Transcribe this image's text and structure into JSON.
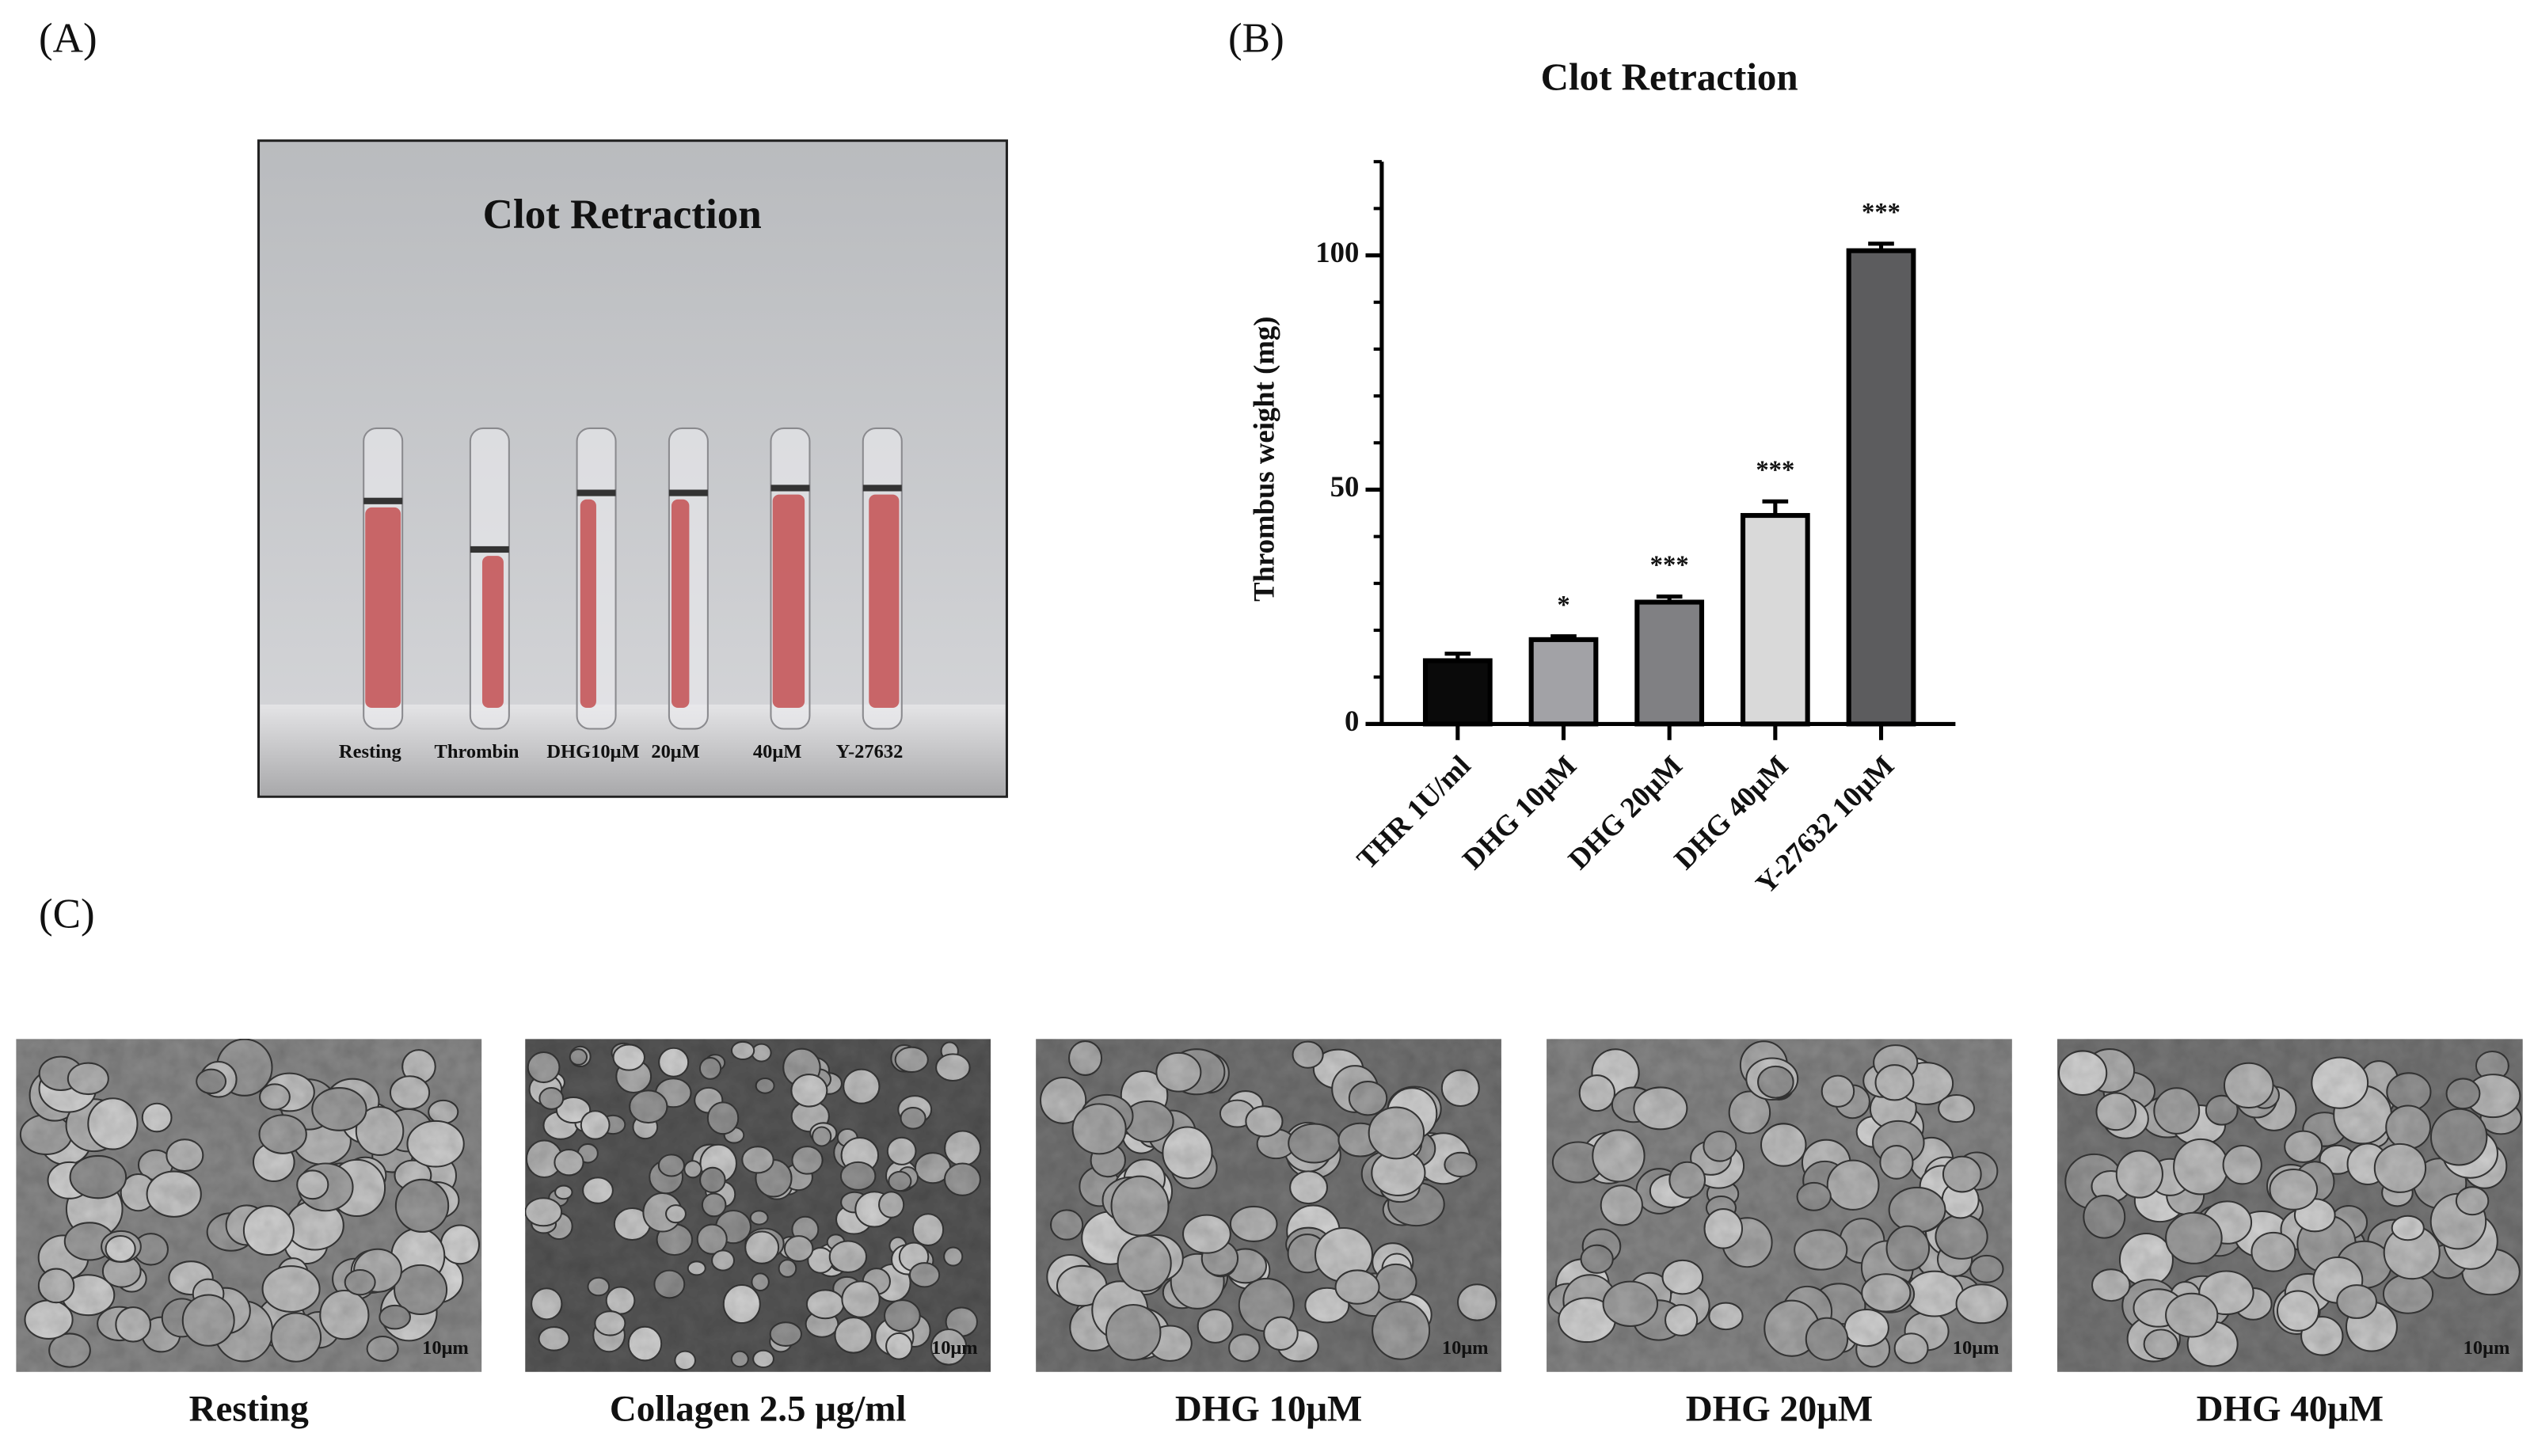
{
  "panels": {
    "a": "(A)",
    "b": "(B)",
    "c": "(C)"
  },
  "photo": {
    "title": "Clot Retraction",
    "labels": [
      "Resting",
      "Thrombin",
      "DHG10μM",
      "20μM",
      "40μM",
      "Y-27632"
    ]
  },
  "chart_data": {
    "type": "bar",
    "title": "Clot Retraction",
    "y_label": "Thrombus weight (mg)",
    "categories": [
      "THR 1U/ml",
      "DHG 10μM",
      "DHG 20μM",
      "DHG 40μM",
      "Y-27632 10μM"
    ],
    "values": [
      13.5,
      18,
      26,
      44.5,
      101
    ],
    "errors": [
      1.5,
      0.7,
      1.2,
      3,
      1.5
    ],
    "significance": [
      null,
      "*",
      "***",
      "***",
      "***"
    ],
    "colors": [
      "#0a0a0a",
      "#a2a2a6",
      "#808083",
      "#d9d9d9",
      "#5c5c5e"
    ],
    "ylim": [
      0,
      120
    ],
    "yticks": [
      0,
      50,
      100
    ],
    "yminorticks": [
      10,
      20,
      30,
      40,
      60,
      70,
      80,
      90,
      110,
      120
    ]
  },
  "sem": [
    {
      "label": "Resting",
      "scale": "10μm"
    },
    {
      "label": "Collagen 2.5 μg/ml",
      "scale": "10μm"
    },
    {
      "label": "DHG 10μM",
      "scale": "10μm"
    },
    {
      "label": "DHG 20μM",
      "scale": "10μm"
    },
    {
      "label": "DHG 40μM",
      "scale": "10μm"
    }
  ]
}
